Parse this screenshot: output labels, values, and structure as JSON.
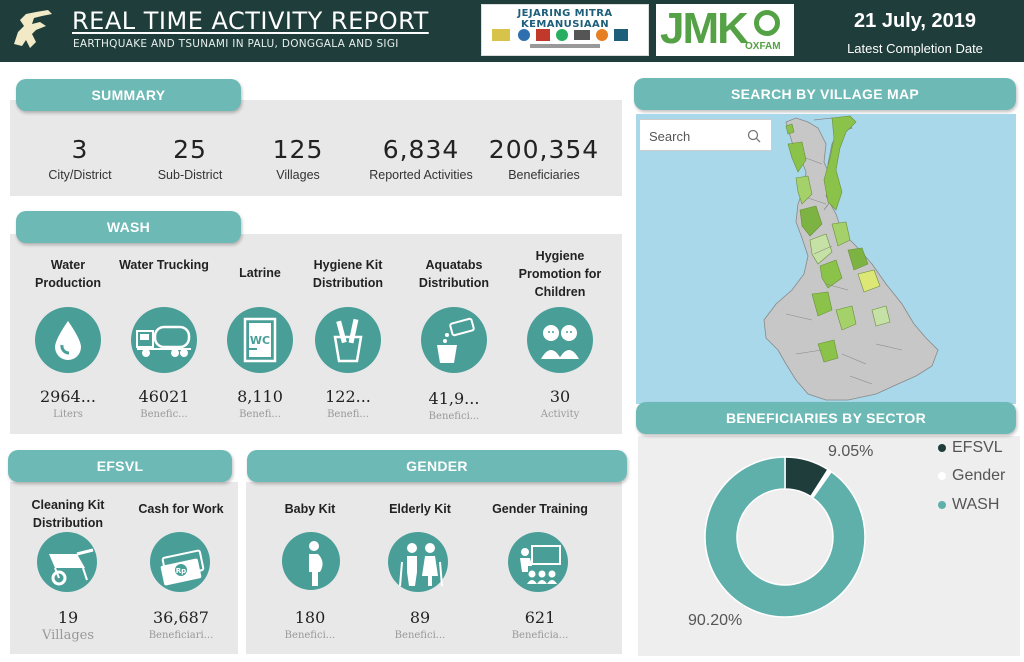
{
  "header": {
    "title": "REAL TIME ACTIVITY REPORT",
    "subtitle": "EARTHQUAKE AND TSUNAMI IN PALU, DONGGALA AND SIGI",
    "partner_title": "JEJARING MITRA KEMANUSIAAN",
    "jmk_logo_text": "JMK",
    "oxfam_text": "OXFAM",
    "date": "21 July, 2019",
    "date_caption": "Latest Completion Date"
  },
  "summary": {
    "heading": "SUMMARY",
    "items": [
      {
        "value": "3",
        "label": "City/District"
      },
      {
        "value": "25",
        "label": "Sub-District"
      },
      {
        "value": "125",
        "label": "Villages"
      },
      {
        "value": "6,834",
        "label": "Reported Activities"
      },
      {
        "value": "200,354",
        "label": "Beneficiaries"
      }
    ]
  },
  "wash": {
    "heading": "WASH",
    "items": [
      {
        "title": "Water Production",
        "value": "2964...",
        "unit": "Liters",
        "icon": "water-drop-icon"
      },
      {
        "title": "Water Trucking",
        "value": "46021",
        "unit": "Benefic...",
        "icon": "water-truck-icon"
      },
      {
        "title": "Latrine",
        "value": "8,110",
        "unit": "Benefi...",
        "icon": "latrine-icon"
      },
      {
        "title": "Hygiene Kit Distribution",
        "value": "122...",
        "unit": "Benefi...",
        "icon": "hygiene-kit-icon"
      },
      {
        "title": "Aquatabs Distribution",
        "value": "41,9...",
        "unit": "Benefici...",
        "icon": "aquatabs-icon"
      },
      {
        "title": "Hygiene Promotion for Children",
        "value": "30",
        "unit": "Activity",
        "icon": "children-icon"
      }
    ]
  },
  "efsvl": {
    "heading": "EFSVL",
    "items": [
      {
        "title": "Cleaning Kit Distribution",
        "value": "19",
        "unit": "Villages",
        "icon": "wheelbarrow-icon"
      },
      {
        "title": "Cash for Work",
        "value": "36,687",
        "unit": "Beneficiari...",
        "icon": "cash-icon"
      }
    ]
  },
  "gender": {
    "heading": "GENDER",
    "items": [
      {
        "title": "Baby Kit",
        "value": "180",
        "unit": "Benefici...",
        "icon": "pregnant-woman-icon"
      },
      {
        "title": "Elderly Kit",
        "value": "89",
        "unit": "Benefici...",
        "icon": "elderly-icon"
      },
      {
        "title": "Gender Training",
        "value": "621",
        "unit": "Beneficia...",
        "icon": "training-icon"
      }
    ]
  },
  "map": {
    "heading": "SEARCH BY VILLAGE MAP",
    "search_placeholder": "Search"
  },
  "sector": {
    "heading": "BENEFICIARIES BY SECTOR",
    "labels": {
      "top": "9.05%",
      "bottom": "90.20%"
    }
  },
  "chart_data": {
    "type": "pie",
    "categories": [
      "EFSVL",
      "Gender",
      "WASH"
    ],
    "values": [
      9.05,
      0.75,
      90.2
    ],
    "colors": [
      "#1e3d3b",
      "#ffffff",
      "#5fb0ab"
    ],
    "title": "BENEFICIARIES BY SECTOR",
    "legend": "top-right"
  },
  "colors": {
    "header": "#1e3d3b",
    "accent": "#6cb9b5",
    "icon_circle": "#4a9e98",
    "panel": "#e8e8e8"
  }
}
